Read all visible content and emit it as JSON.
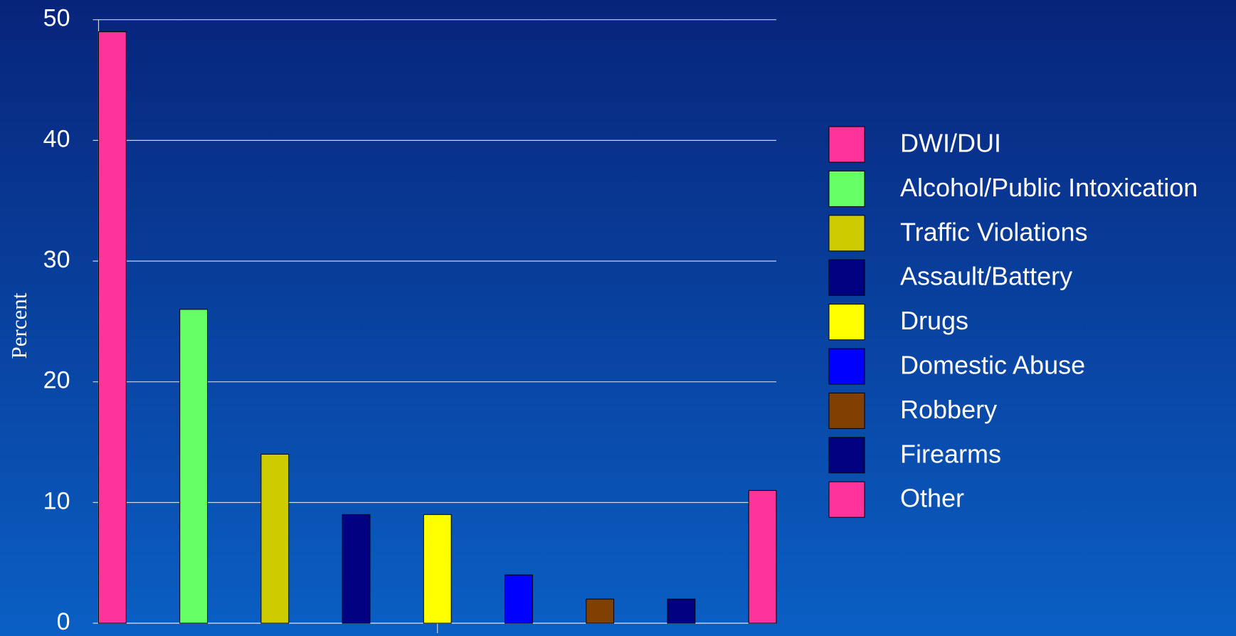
{
  "chart_data": {
    "type": "bar",
    "y_label": "Percent",
    "categories": [
      null
    ],
    "series": [
      {
        "name": "DWI/DUI",
        "color": "#ff3399",
        "values": [
          49
        ]
      },
      {
        "name": "Alcohol/Public Intoxication",
        "color": "#66ff66",
        "values": [
          26
        ]
      },
      {
        "name": "Traffic Violations",
        "color": "#cccc00",
        "values": [
          14
        ]
      },
      {
        "name": "Assault/Battery",
        "color": "#000080",
        "values": [
          9
        ]
      },
      {
        "name": "Drugs",
        "color": "#ffff00",
        "values": [
          9
        ]
      },
      {
        "name": "Domestic Abuse",
        "color": "#0000ff",
        "values": [
          4
        ]
      },
      {
        "name": "Robbery",
        "color": "#804000",
        "values": [
          2
        ]
      },
      {
        "name": "Firearms",
        "color": "#000080",
        "values": [
          2
        ]
      },
      {
        "name": "Other",
        "color": "#ff3399",
        "values": [
          11
        ]
      }
    ],
    "ylim": [
      0,
      50
    ],
    "yticks": [
      0,
      10,
      20,
      30,
      40,
      50
    ],
    "grid": true,
    "legend": "right"
  }
}
